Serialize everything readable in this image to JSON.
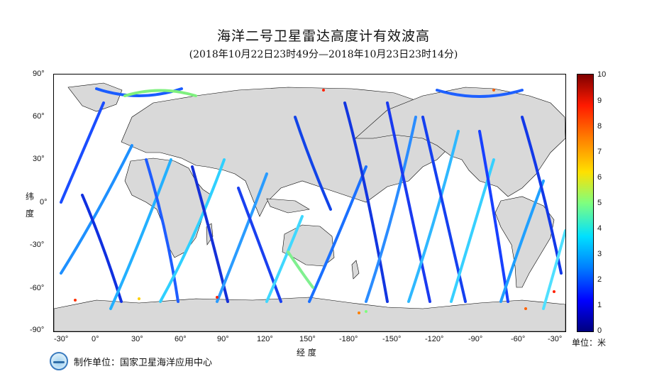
{
  "title": "海洋二号卫星雷达高度计有效波高",
  "subtitle": "(2018年10月22日23时49分—2018年10月23日23时14分)",
  "map": {
    "lon_ticks": [
      "-30°",
      "0°",
      "30°",
      "60°",
      "90°",
      "120°",
      "150°",
      "-180°",
      "-150°",
      "-120°",
      "-90°",
      "-60°",
      "-30°"
    ],
    "lat_ticks": [
      "90°",
      "60°",
      "30°",
      "0°",
      "-30°",
      "-60°",
      "-90°"
    ],
    "xlabel": "经 度",
    "ylabel_top": "纬",
    "ylabel_bottom": "度",
    "land_color": "#d9d9d9",
    "ocean_color": "#ffffff"
  },
  "colorbar": {
    "min": 0,
    "max": 10,
    "labels": [
      "10",
      "9",
      "8",
      "7",
      "6",
      "5",
      "4",
      "3",
      "2",
      "1",
      "0"
    ],
    "unit": "单位：米",
    "colors": [
      "#00007f",
      "#0000ff",
      "#0080ff",
      "#00e0ff",
      "#7fff7f",
      "#ffe000",
      "#ff8000",
      "#ff1a00",
      "#7f0000"
    ]
  },
  "footer": {
    "producer": "制作单位：国家卫星海洋应用中心",
    "logo_icon": "nsoas-logo-icon"
  }
}
